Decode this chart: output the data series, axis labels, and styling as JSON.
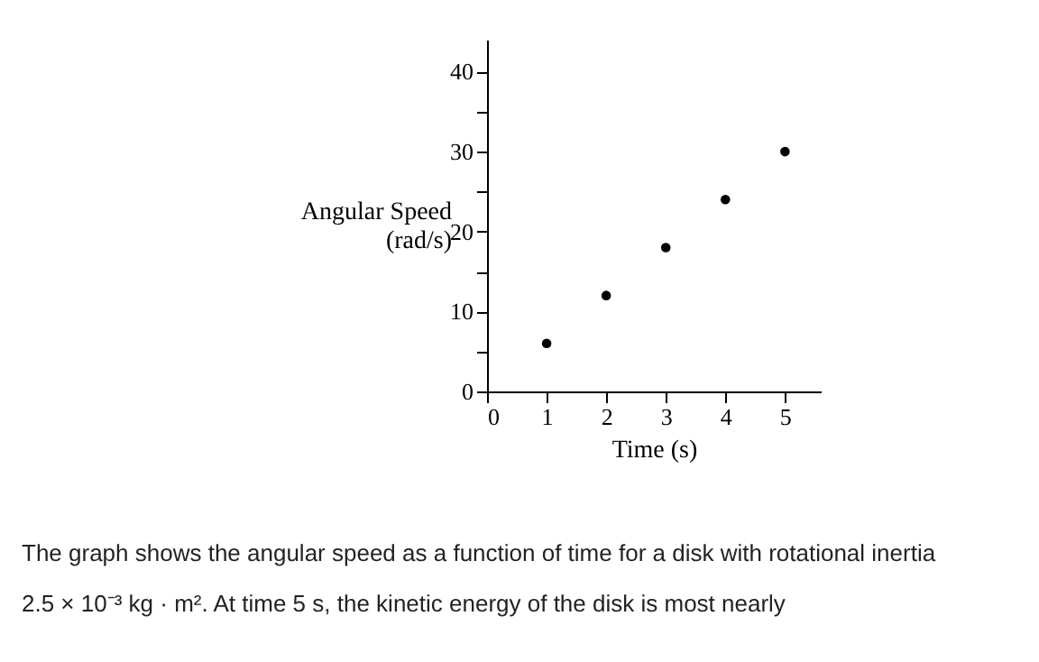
{
  "chart_data": {
    "type": "scatter",
    "x": [
      1,
      2,
      3,
      4,
      5
    ],
    "series": [
      {
        "color": "#000000",
        "values": [
          6,
          12,
          18,
          24,
          30
        ]
      }
    ],
    "xlabel": "Time (s)",
    "ylabel": "Angular Speed\n(rad/s)",
    "xlim": [
      0,
      5.6
    ],
    "xticks": [
      0,
      1,
      2,
      3,
      4,
      5
    ],
    "ylim": [
      0,
      44
    ],
    "yticks": [
      0,
      {
        "value": 5,
        "label": null
      },
      10,
      {
        "value": 15,
        "label": null
      },
      20,
      {
        "value": 25,
        "label": null
      },
      30,
      {
        "value": 35,
        "label": null
      },
      40
    ],
    "marker": "circle",
    "grid": false,
    "legend": false,
    "annotations": [
      "The graph shows the angular speed as a function of time for a disk with rotational inertia",
      "2.5 × 10⁻³ kg · m². At time 5 s, the kinetic energy of the disk is most nearly"
    ]
  }
}
